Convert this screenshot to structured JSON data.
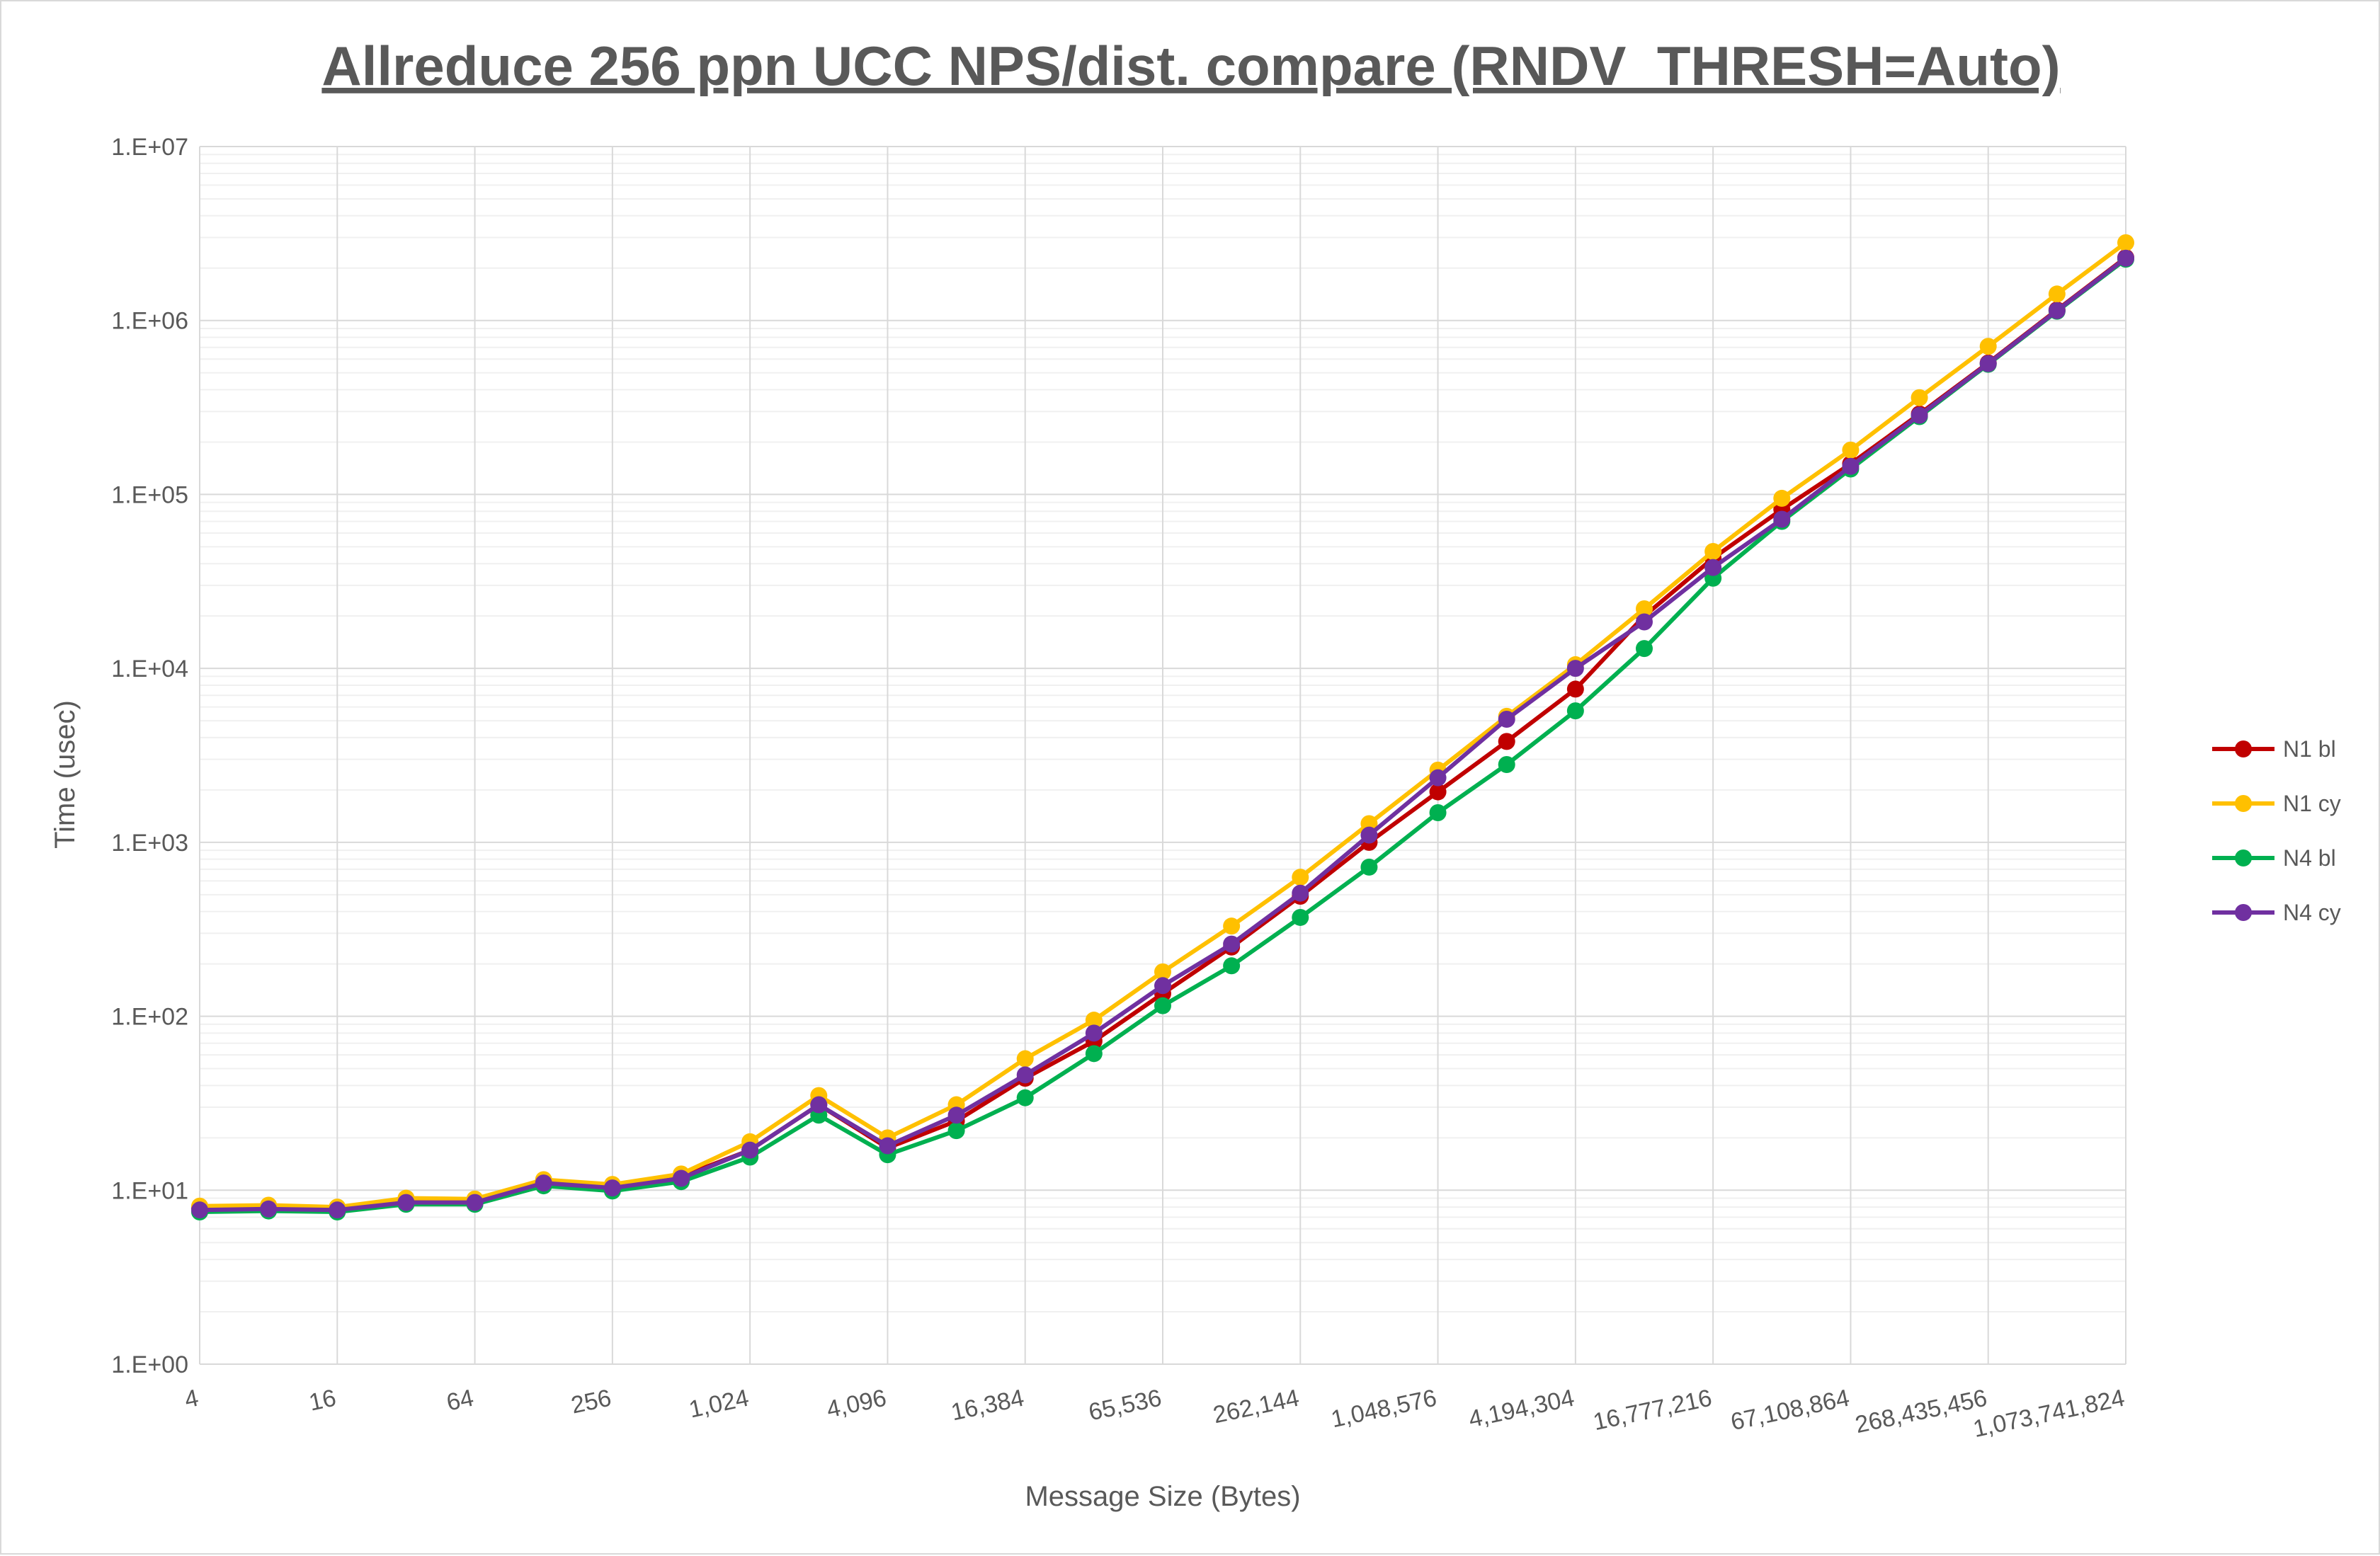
{
  "chart_data": {
    "type": "line",
    "title": "Allreduce 256 ppn UCC NPS/dist. compare (RNDV_THRESH=Auto)",
    "xlabel": "Message Size (Bytes)",
    "ylabel": "Time (usec)",
    "x_scale": "log2",
    "y_scale": "log10",
    "ylim": [
      1,
      10000000
    ],
    "y_ticks": [
      "1.E+00",
      "1.E+01",
      "1.E+02",
      "1.E+03",
      "1.E+04",
      "1.E+05",
      "1.E+06",
      "1.E+07"
    ],
    "x": [
      4,
      8,
      16,
      32,
      64,
      128,
      256,
      512,
      1024,
      2048,
      4096,
      8192,
      16384,
      32768,
      65536,
      131072,
      262144,
      524288,
      1048576,
      2097152,
      4194304,
      8388608,
      16777216,
      33554432,
      67108864,
      134217728,
      268435456,
      536870912,
      1073741824
    ],
    "x_tick_labels": [
      "4",
      "16",
      "64",
      "256",
      "1,024",
      "4,096",
      "16,384",
      "65,536",
      "262,144",
      "1,048,576",
      "4,194,304",
      "16,777,216",
      "67,108,864",
      "268,435,456",
      "1,073,741,824"
    ],
    "grid": true,
    "legend_position": "right",
    "series": [
      {
        "name": "N1 bl",
        "color": "#c00000",
        "values": [
          7.9,
          8.0,
          7.8,
          8.7,
          8.6,
          11.2,
          10.4,
          12.0,
          17.0,
          31.0,
          17.5,
          25.0,
          44.0,
          72.0,
          135,
          250,
          490,
          1000,
          1950,
          3800,
          7600,
          20000,
          43000,
          82000,
          150000,
          290000,
          570000,
          1150000,
          2300000
        ]
      },
      {
        "name": "N1 cy",
        "color": "#ffc000",
        "values": [
          8.1,
          8.2,
          8.0,
          9.0,
          8.9,
          11.5,
          10.8,
          12.4,
          19.0,
          35.0,
          20.0,
          31.0,
          57.0,
          95.0,
          180,
          330,
          630,
          1280,
          2600,
          5300,
          10500,
          22000,
          47000,
          95000,
          180000,
          360000,
          710000,
          1420000,
          2800000
        ]
      },
      {
        "name": "N4 bl",
        "color": "#00b050",
        "values": [
          7.5,
          7.6,
          7.5,
          8.3,
          8.3,
          10.6,
          9.9,
          11.2,
          15.5,
          27.0,
          16.0,
          22.0,
          34.0,
          61.0,
          115,
          195,
          370,
          720,
          1480,
          2800,
          5700,
          13000,
          33000,
          70000,
          140000,
          280000,
          560000,
          1130000,
          2250000
        ]
      },
      {
        "name": "N4 cy",
        "color": "#7030a0",
        "values": [
          7.7,
          7.8,
          7.7,
          8.5,
          8.5,
          11.0,
          10.3,
          11.7,
          17.0,
          31.0,
          18.0,
          27.0,
          46.0,
          80.0,
          150,
          260,
          510,
          1100,
          2350,
          5100,
          10000,
          18500,
          38000,
          72000,
          145000,
          285000,
          565000,
          1140000,
          2280000
        ]
      }
    ]
  }
}
